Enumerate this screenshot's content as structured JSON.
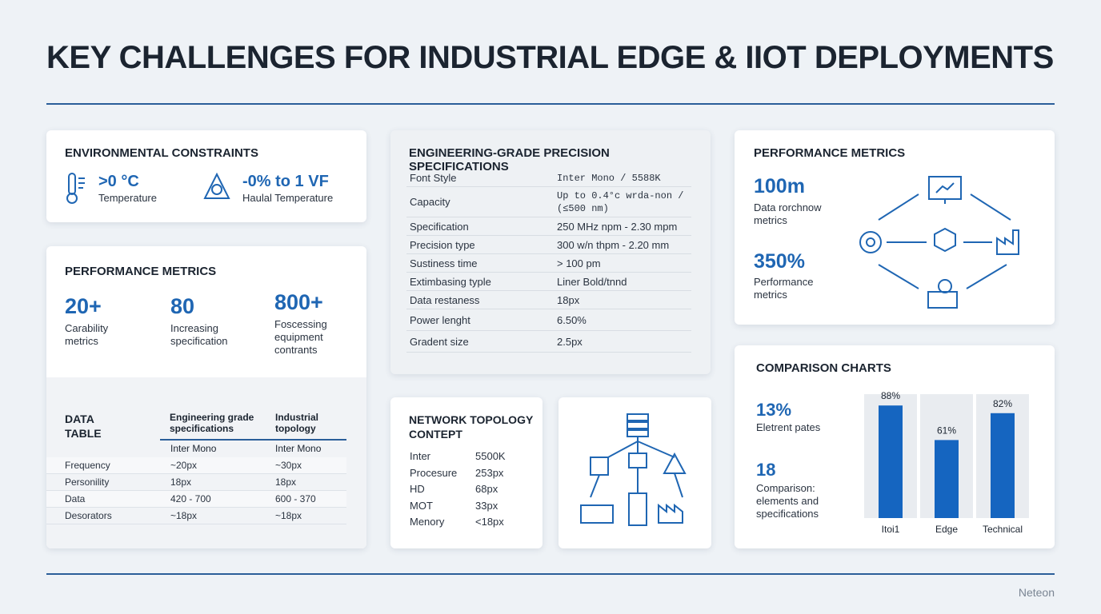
{
  "title": "KEY CHALLENGES FOR INDUSTRIAL EDGE & IIOT DEPLOYMENTS",
  "environmental": {
    "title": "ENVIRONMENTAL CONSTRAINTS",
    "items": [
      {
        "value": ">0 °C",
        "label": "Temperature"
      },
      {
        "value": "-0% to 1 VF",
        "label": "Haulal Temperature"
      }
    ]
  },
  "performance_left": {
    "title": "PERFORMANCE METRICS",
    "items": [
      {
        "value": "20+",
        "label": "Carability metrics"
      },
      {
        "value": "80",
        "label": "Increasing specification"
      },
      {
        "value": "800+",
        "label": "Foscessing equipment contrants"
      }
    ]
  },
  "data_table": {
    "title": "DATA TABLE",
    "headers": [
      "Engineering grade specifications",
      "Industrial topology"
    ],
    "subheaders": [
      "Inter Mono",
      "Inter Mono"
    ],
    "rows": [
      [
        "Frequency",
        "~20px",
        "~30px"
      ],
      [
        "Personility",
        "18px",
        "18px"
      ],
      [
        "Data",
        "420 - 700",
        "600 - 370"
      ],
      [
        "Desorators",
        "~18px",
        "~18px"
      ]
    ]
  },
  "specifications": {
    "title": "ENGINEERING-GRADE PRECISION SPECIFICATIONS",
    "rows": [
      [
        "Font Style",
        "Inter Mono / 5588K"
      ],
      [
        "Capacity",
        "Up to 0.4°c wrda-non / (≤500 nm)"
      ],
      [
        "Specification",
        "250 MHz npm - 2.30 mpm"
      ],
      [
        "Precision type",
        "300 w/n thpm - 2.20 mm"
      ],
      [
        "Sustiness time",
        "> 100 pm"
      ],
      [
        "Extimbasing typle",
        "Liner Bold/tnnd"
      ],
      [
        "Data restaness",
        "18px"
      ],
      [
        "Power lenght",
        "6.50%"
      ],
      [
        "Gradent size",
        "2.5px"
      ]
    ]
  },
  "network": {
    "title": "NETWORK TOPOLOGY CONTEPT",
    "rows": [
      [
        "Inter",
        "5500K"
      ],
      [
        "Procesure",
        "253px"
      ],
      [
        "HD",
        "68px"
      ],
      [
        "MOT",
        "33px"
      ],
      [
        "Menory",
        "<18px"
      ]
    ]
  },
  "performance_right": {
    "title": "PERFORMANCE METRICS",
    "items": [
      {
        "value": "100m",
        "label": "Data rorchnow metrics"
      },
      {
        "value": "350%",
        "label": "Performance metrics"
      }
    ]
  },
  "comparison": {
    "title": "COMPARISON CHARTS",
    "items": [
      {
        "value": "13%",
        "label": "Eletrent pates"
      },
      {
        "value": "18",
        "label": "Comparison: elements and specifications"
      }
    ],
    "chart": {
      "type": "bar",
      "categories": [
        "Itoi1",
        "Edge",
        "Technical"
      ],
      "values": [
        88,
        61,
        82
      ],
      "value_labels": [
        "88%",
        "61%",
        "82%"
      ],
      "ylim": [
        0,
        100
      ],
      "color": "#1565c0"
    }
  },
  "footer": "Neteon"
}
